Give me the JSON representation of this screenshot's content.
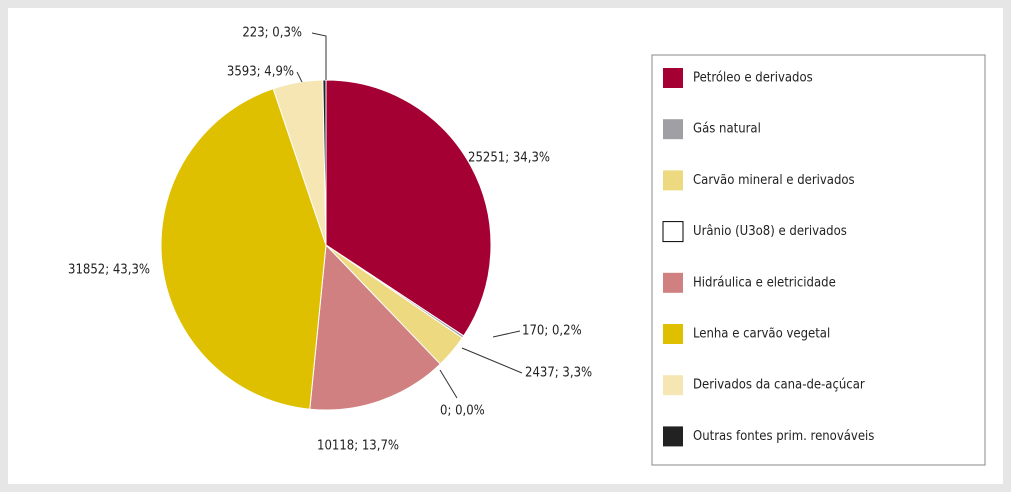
{
  "chart_data": {
    "type": "pie",
    "categories": [
      "Petróleo e derivados",
      "Gás natural",
      "Carvão mineral e derivados",
      "Urânio (U3o8) e derivados",
      "Hidráulica e eletricidade",
      "Lenha e carvão vegetal",
      "Derivados da cana-de-açúcar",
      "Outras fontes prim. renováveis"
    ],
    "values": [
      25251,
      170,
      2437,
      0,
      10118,
      31852,
      3593,
      223
    ],
    "value_labels": [
      "25251; 34,3%",
      "170; 0,2%",
      "2437; 3,3%",
      "0; 0,0%",
      "10118; 13,7%",
      "31852; 43,3%",
      "3593; 4,9%",
      "223; 0,3%"
    ],
    "colors": [
      "#a50034",
      "#a0a0a4",
      "#ecd980",
      "#ffffff",
      "#d08080",
      "#dfc000",
      "#f5e6b4",
      "#222222"
    ],
    "legend": "right"
  }
}
